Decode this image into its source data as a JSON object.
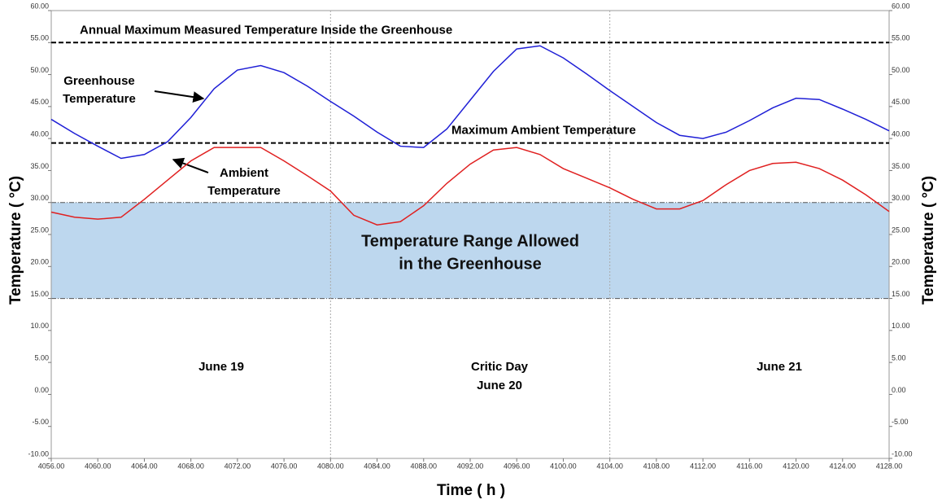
{
  "chart_data": {
    "type": "line",
    "ylabel": "Temperature ( °C)",
    "y2label": "Temperature ( °C)",
    "xlabel": "Time ( h )",
    "xlim": [
      4056,
      4128
    ],
    "ylim": [
      -10,
      60
    ],
    "xticks": [
      {
        "value": 4056,
        "label": "4056.00"
      },
      {
        "value": 4060,
        "label": "4060.00"
      },
      {
        "value": 4064,
        "label": "4064.00"
      },
      {
        "value": 4068,
        "label": "4068.00"
      },
      {
        "value": 4072,
        "label": "4072.00"
      },
      {
        "value": 4076,
        "label": "4076.00"
      },
      {
        "value": 4080,
        "label": "4080.00"
      },
      {
        "value": 4084,
        "label": "4084.00"
      },
      {
        "value": 4088,
        "label": "4088.00"
      },
      {
        "value": 4092,
        "label": "4092.00"
      },
      {
        "value": 4096,
        "label": "4096.00"
      },
      {
        "value": 4100,
        "label": "4100.00"
      },
      {
        "value": 4104,
        "label": "4104.00"
      },
      {
        "value": 4108,
        "label": "4108.00"
      },
      {
        "value": 4112,
        "label": "4112.00"
      },
      {
        "value": 4116,
        "label": "4116.00"
      },
      {
        "value": 4120,
        "label": "4120.00"
      },
      {
        "value": 4124,
        "label": "4124.00"
      },
      {
        "value": 4128,
        "label": "4128.00"
      }
    ],
    "yticks": [
      {
        "value": -10,
        "label": "-10.00"
      },
      {
        "value": -5,
        "label": "-5.00"
      },
      {
        "value": 0,
        "label": "0.00"
      },
      {
        "value": 5,
        "label": "5.00"
      },
      {
        "value": 10,
        "label": "10.00"
      },
      {
        "value": 15,
        "label": "15.00"
      },
      {
        "value": 20,
        "label": "20.00"
      },
      {
        "value": 25,
        "label": "25.00"
      },
      {
        "value": 30,
        "label": "30.00"
      },
      {
        "value": 35,
        "label": "35.00"
      },
      {
        "value": 40,
        "label": "40.00"
      },
      {
        "value": 45,
        "label": "45.00"
      },
      {
        "value": 50,
        "label": "50.00"
      },
      {
        "value": 55,
        "label": "55.00"
      },
      {
        "value": 60,
        "label": "60.00"
      }
    ],
    "day_boundaries": [
      4080,
      4104
    ],
    "x": [
      4056,
      4058,
      4060,
      4062,
      4064,
      4066,
      4068,
      4070,
      4072,
      4074,
      4076,
      4078,
      4080,
      4082,
      4084,
      4086,
      4088,
      4090,
      4092,
      4094,
      4096,
      4098,
      4100,
      4102,
      4104,
      4106,
      4108,
      4110,
      4112,
      4114,
      4116,
      4118,
      4120,
      4122,
      4124,
      4126,
      4128
    ],
    "series": [
      {
        "name": "Greenhouse Temperature",
        "color": "#1f1fd6",
        "values": [
          43,
          40.8,
          38.8,
          36.9,
          37.5,
          39.5,
          43.3,
          47.8,
          50.7,
          51.4,
          50.3,
          48.2,
          45.8,
          43.5,
          41,
          38.8,
          38.6,
          41.5,
          46,
          50.5,
          54,
          54.5,
          52.6,
          50.1,
          47.5,
          45,
          42.5,
          40.5,
          40,
          41,
          42.8,
          44.8,
          46.3,
          46.1,
          44.6,
          43,
          41.2
        ]
      },
      {
        "name": "Ambient Temperature",
        "color": "#e02020",
        "values": [
          28.5,
          27.7,
          27.4,
          27.7,
          30.5,
          33.5,
          36.5,
          38.6,
          38.6,
          38.6,
          36.5,
          34.2,
          31.8,
          28,
          26.5,
          27,
          29.5,
          33,
          36,
          38.2,
          38.6,
          37.5,
          35.3,
          33.8,
          32.3,
          30.5,
          29,
          29,
          30.3,
          32.8,
          35,
          36.1,
          36.3,
          35.3,
          33.5,
          31.2,
          28.6
        ]
      }
    ],
    "reference_lines": [
      {
        "label": "Annual Maximum Measured Temperature Inside the Greenhouse",
        "value": 55
      },
      {
        "label": "Maximum Ambient Temperature",
        "value": 39.3
      }
    ],
    "band": {
      "label": [
        "Temperature Range Allowed",
        "in the Greenhouse"
      ],
      "range": [
        15,
        30
      ],
      "color": "#bdd7ee"
    },
    "day_labels": [
      [
        "June 19"
      ],
      [
        "Critic Day",
        "June 20"
      ],
      [
        "June 21"
      ]
    ]
  }
}
